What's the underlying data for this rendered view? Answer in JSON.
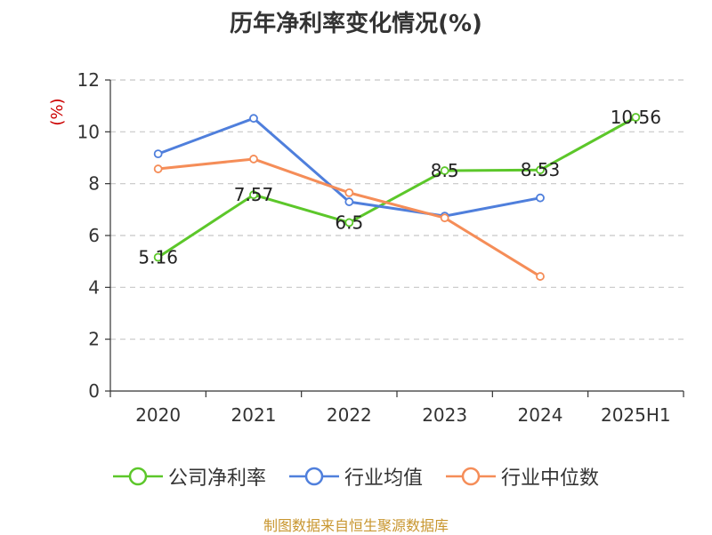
{
  "source_text": "制图数据来自恒生聚源数据库",
  "chart_data": {
    "type": "line",
    "title": "历年净利率变化情况(%)",
    "ylabel": "(%)",
    "xlabel": "",
    "categories": [
      "2020",
      "2021",
      "2022",
      "2023",
      "2024",
      "2025H1"
    ],
    "ylim": [
      0,
      12
    ],
    "yticks": [
      "0",
      "2",
      "4",
      "6",
      "8",
      "10",
      "12"
    ],
    "grid": true,
    "legend_position": "bottom",
    "series": [
      {
        "name": "公司净利率",
        "color": "#5cc72a",
        "values": [
          5.16,
          7.57,
          6.5,
          8.5,
          8.53,
          10.56
        ],
        "labels": [
          "5.16",
          "7.57",
          "6.5",
          "8.5",
          "8.53",
          "10.56"
        ]
      },
      {
        "name": "行业均值",
        "color": "#4f7fdc",
        "values": [
          9.15,
          10.52,
          7.3,
          6.75,
          7.45,
          null
        ]
      },
      {
        "name": "行业中位数",
        "color": "#f58d58",
        "values": [
          8.57,
          8.95,
          7.65,
          6.68,
          4.42,
          null
        ]
      }
    ]
  }
}
